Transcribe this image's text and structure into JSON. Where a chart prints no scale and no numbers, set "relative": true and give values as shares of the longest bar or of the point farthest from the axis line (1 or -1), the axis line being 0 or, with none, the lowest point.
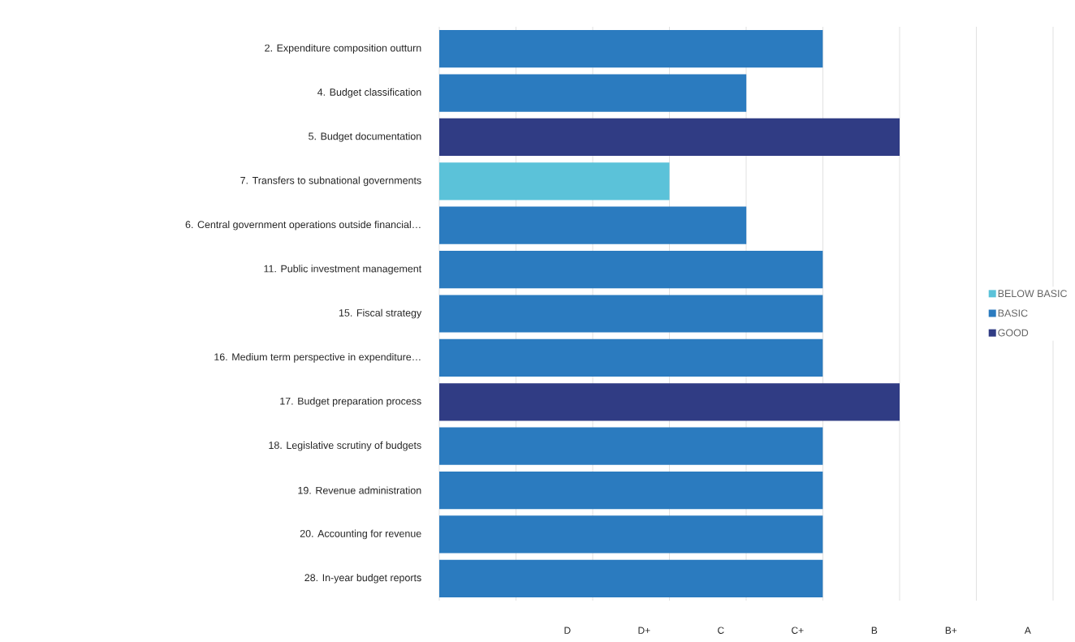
{
  "chart_data": {
    "type": "bar",
    "orientation": "horizontal",
    "relative": true,
    "categories": [
      "2. Expenditure composition outturn",
      "4. Budget classification",
      "5. Budget documentation",
      "7. Transfers to subnational governments",
      "6. Central government operations outside financial…",
      "11. Public investment management",
      "15. Fiscal strategy",
      "16. Medium term perspective in expenditure…",
      "17. Budget preparation process",
      "18. Legislative scrutiny of budgets",
      "19. Revenue administration",
      "20. Accounting for revenue",
      "28. In-year budget reports"
    ],
    "series": [
      {
        "name": "BELOW BASIC",
        "color": "#5bc2d9",
        "values": [
          null,
          null,
          null,
          0.5,
          null,
          null,
          null,
          null,
          null,
          null,
          null,
          null,
          null
        ]
      },
      {
        "name": "BASIC",
        "color": "#2b7bbf",
        "values": [
          0.833,
          0.667,
          null,
          null,
          0.667,
          0.833,
          0.833,
          0.833,
          null,
          0.833,
          0.833,
          0.833,
          0.833
        ]
      },
      {
        "name": "GOOD",
        "color": "#303c84",
        "values": [
          null,
          null,
          1,
          null,
          null,
          null,
          null,
          null,
          1,
          null,
          null,
          null,
          null
        ]
      }
    ],
    "annotations": [
      "D",
      "D+",
      "C",
      "C+",
      "B",
      "B+",
      "A"
    ],
    "grid": "x",
    "legend": "right"
  }
}
